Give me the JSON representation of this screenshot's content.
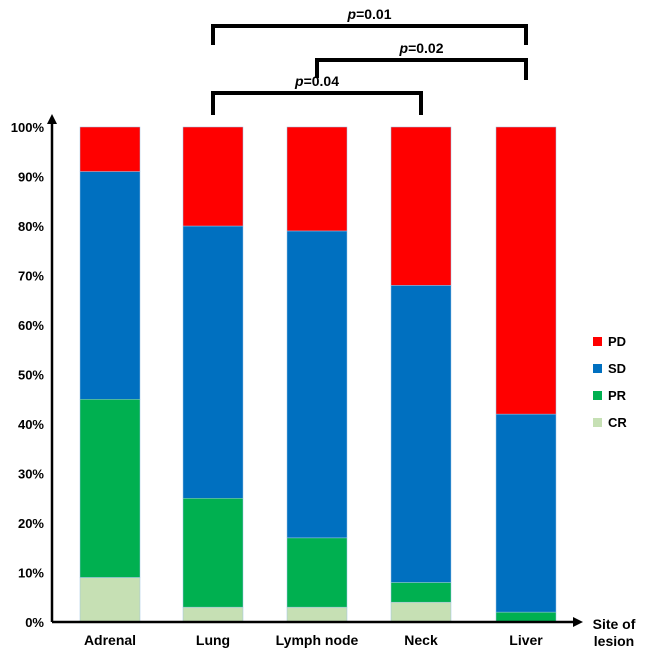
{
  "chart_data": {
    "type": "bar",
    "stacked": true,
    "normalized": true,
    "categories": [
      "Adrenal",
      "Lung",
      "Lymph node",
      "Neck",
      "Liver"
    ],
    "series": [
      {
        "name": "CR",
        "values": [
          9,
          3,
          3,
          4,
          0
        ],
        "color": "#c6e0b4"
      },
      {
        "name": "PR",
        "values": [
          36,
          22,
          14,
          4,
          2
        ],
        "color": "#00b050"
      },
      {
        "name": "SD",
        "values": [
          46,
          55,
          62,
          60,
          40
        ],
        "color": "#0070c0"
      },
      {
        "name": "PD",
        "values": [
          9,
          20,
          21,
          32,
          58
        ],
        "color": "#ff0000"
      }
    ],
    "xlabel_lines": [
      "Site of",
      "lesion"
    ],
    "ylim": [
      0,
      100
    ],
    "yticks": [
      "0%",
      "10%",
      "20%",
      "30%",
      "40%",
      "50%",
      "60%",
      "70%",
      "80%",
      "90%",
      "100%"
    ],
    "legend": {
      "placement": "right",
      "order": [
        "PD",
        "SD",
        "PR",
        "CR"
      ]
    },
    "grid": false,
    "annotations": [
      {
        "p_symbol": "p",
        "value": "=0.01",
        "from": "Lung",
        "to": "Liver",
        "level": 3
      },
      {
        "p_symbol": "p",
        "value": "=0.02",
        "from": "Lymph node",
        "to": "Liver",
        "level": 2
      },
      {
        "p_symbol": "p",
        "value": "=0.04",
        "from": "Lung",
        "to": "Neck",
        "level": 1
      }
    ]
  }
}
